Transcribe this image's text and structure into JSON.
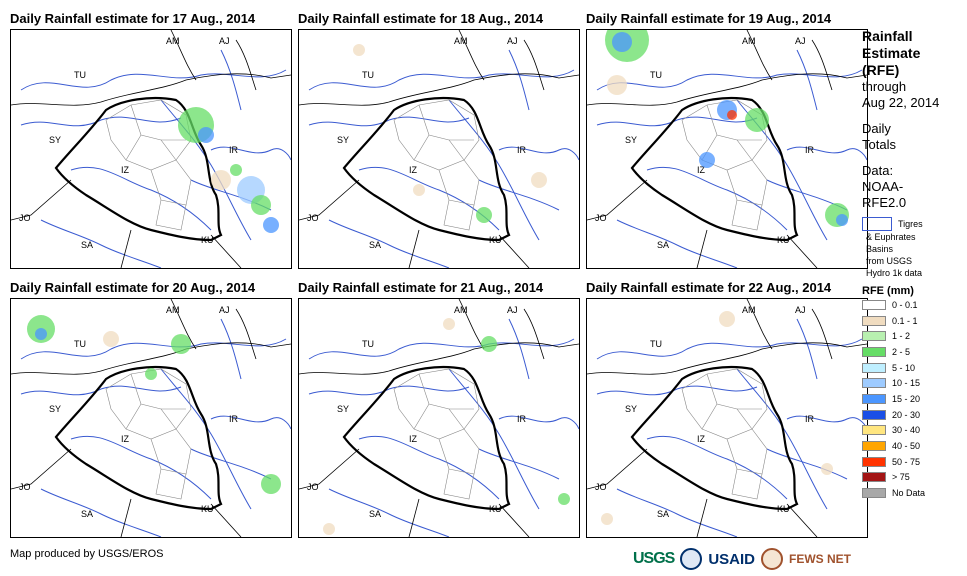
{
  "panels": [
    {
      "title": "Daily Rainfall estimate for 17 Aug., 2014"
    },
    {
      "title": "Daily Rainfall estimate for 18 Aug., 2014"
    },
    {
      "title": "Daily Rainfall estimate for 19 Aug., 2014"
    },
    {
      "title": "Daily Rainfall estimate for 20 Aug., 2014"
    },
    {
      "title": "Daily Rainfall estimate for 21 Aug., 2014"
    },
    {
      "title": "Daily Rainfall estimate for 22 Aug., 2014"
    }
  ],
  "map_labels": {
    "am": "AM",
    "aj": "AJ",
    "tu": "TU",
    "sy": "SY",
    "iz": "IZ",
    "ir": "IR",
    "jo": "JO",
    "sa": "SA",
    "ku": "KU"
  },
  "sidebar": {
    "title_1": "Rainfall",
    "title_2": "Estimate",
    "title_3": "(RFE)",
    "through": "through",
    "date": "Aug 22, 2014",
    "daily": "Daily",
    "totals": "Totals",
    "data_label": "Data:",
    "data_1": "NOAA-",
    "data_2": "RFE2.0",
    "basin_1": "Tigres",
    "basin_2": "& Euphrates",
    "basin_3": "Basins",
    "basin_4": "from USGS",
    "basin_5": "Hydro 1k data"
  },
  "legend": {
    "title": "RFE (mm)",
    "items": [
      {
        "label": "0 - 0.1",
        "color": "#ffffff"
      },
      {
        "label": "0.1 - 1",
        "color": "#f0dcc0"
      },
      {
        "label": "1 - 2",
        "color": "#b8f0b0"
      },
      {
        "label": "2 - 5",
        "color": "#66dd66"
      },
      {
        "label": "5 - 10",
        "color": "#bfefff"
      },
      {
        "label": "10 - 15",
        "color": "#9ecbff"
      },
      {
        "label": "15 - 20",
        "color": "#4b96ff"
      },
      {
        "label": "20 - 30",
        "color": "#1a4fe6"
      },
      {
        "label": "30 - 40",
        "color": "#ffe680"
      },
      {
        "label": "40 - 50",
        "color": "#ffa500"
      },
      {
        "label": "50 - 75",
        "color": "#ff3300"
      },
      {
        "label": "> 75",
        "color": "#a31515"
      },
      {
        "label": "No Data",
        "color": "#a8a8a8"
      }
    ]
  },
  "footer": {
    "credit": "Map produced by USGS/EROS"
  },
  "logos": {
    "usgs": "USGS",
    "usaid": "USAID",
    "fews": "FEWS NET"
  }
}
